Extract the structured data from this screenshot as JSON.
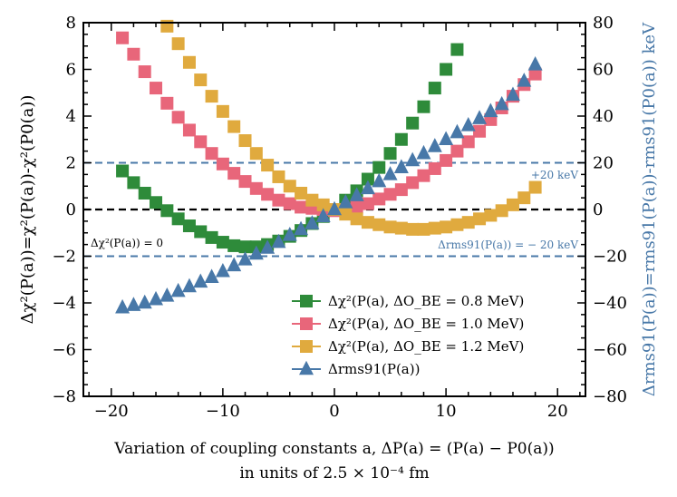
{
  "chart_data": {
    "type": "scatter",
    "xlabel_line1": "Variation of coupling constants a, ΔP(a) = (P(a) − P0(a))",
    "xlabel_line2": "in units of 2.5 × 10⁻⁴ fm",
    "ylabel_left": "Δχ²(P(a))=χ²(P(a))-χ²(P0(a))",
    "ylabel_right": "Δrms91(P(a))=rms91(P(a))-rms91(P0(a)) keV",
    "xlim": [
      -22.5,
      22.5
    ],
    "ylim_left": [
      -8,
      8
    ],
    "ylim_right": [
      -80,
      80
    ],
    "xticks": [
      "−20",
      "−10",
      "0",
      "10",
      "20"
    ],
    "xtick_values": [
      -20,
      -10,
      0,
      10,
      20
    ],
    "yticks_left": [
      "8",
      "6",
      "4",
      "2",
      "0",
      "−2",
      "−4",
      "−6",
      "−8"
    ],
    "ytick_left_values": [
      8,
      6,
      4,
      2,
      0,
      -2,
      -4,
      -6,
      -8
    ],
    "yticks_right": [
      "80",
      "60",
      "40",
      "20",
      "0",
      "−20",
      "−40",
      "−60",
      "−80"
    ],
    "ytick_right_values": [
      80,
      60,
      40,
      20,
      0,
      -20,
      -40,
      -60,
      -80
    ],
    "hlines": [
      {
        "y_right": 20,
        "style": "dashed",
        "color": "#4878a8"
      },
      {
        "y_right": -20,
        "style": "dashed",
        "color": "#4878a8"
      },
      {
        "y_left": 0,
        "style": "dashed",
        "color": "#000000"
      }
    ],
    "annotations": {
      "chi_zero": "Δχ²(P(a)) = 0",
      "plus20": "+20 keV",
      "minus20": "Δrms91(P(a)) = − 20 keV"
    },
    "series": [
      {
        "name": "Δχ²(P(a), ΔO_BE = 0.8 MeV)",
        "color": "#2e8b3a",
        "marker": "square",
        "axis": "left",
        "x": [
          -19,
          -18,
          -17,
          -16,
          -15,
          -14,
          -13,
          -12,
          -11,
          -10,
          -9,
          -8,
          -7,
          -6,
          -5,
          -4,
          -3,
          -2,
          -1,
          0,
          1,
          2,
          3,
          4,
          5,
          6,
          7,
          8,
          9,
          10,
          11
        ],
        "y": [
          1.65,
          1.15,
          0.7,
          0.3,
          -0.05,
          -0.4,
          -0.7,
          -0.95,
          -1.2,
          -1.4,
          -1.55,
          -1.6,
          -1.6,
          -1.5,
          -1.35,
          -1.15,
          -0.9,
          -0.6,
          -0.3,
          0.0,
          0.4,
          0.8,
          1.3,
          1.8,
          2.4,
          3.0,
          3.7,
          4.4,
          5.2,
          6.0,
          6.85
        ]
      },
      {
        "name": "Δχ²(P(a), ΔO_BE = 1.0 MeV)",
        "color": "#e8667a",
        "marker": "square",
        "axis": "left",
        "x": [
          -19,
          -18,
          -17,
          -16,
          -15,
          -14,
          -13,
          -12,
          -11,
          -10,
          -9,
          -8,
          -7,
          -6,
          -5,
          -4,
          -3,
          -2,
          -1,
          0,
          1,
          2,
          3,
          4,
          5,
          6,
          7,
          8,
          9,
          10,
          11,
          12,
          13,
          14,
          15,
          16,
          17,
          18
        ],
        "y": [
          7.35,
          6.65,
          5.9,
          5.2,
          4.55,
          3.95,
          3.4,
          2.9,
          2.4,
          1.95,
          1.55,
          1.2,
          0.9,
          0.65,
          0.4,
          0.25,
          0.1,
          0.05,
          0.0,
          -0.05,
          0.0,
          0.1,
          0.25,
          0.45,
          0.65,
          0.85,
          1.15,
          1.45,
          1.75,
          2.1,
          2.5,
          2.9,
          3.35,
          3.85,
          4.35,
          4.85,
          5.35,
          5.8
        ]
      },
      {
        "name": "Δχ²(P(a), ΔO_BE = 1.2 MeV)",
        "color": "#e0aa3e",
        "marker": "square",
        "axis": "left",
        "x": [
          -15,
          -14,
          -13,
          -12,
          -11,
          -10,
          -9,
          -8,
          -7,
          -6,
          -5,
          -4,
          -3,
          -2,
          -1,
          0,
          1,
          2,
          3,
          4,
          5,
          6,
          7,
          8,
          9,
          10,
          11,
          12,
          13,
          14,
          15,
          16,
          17,
          18
        ],
        "y": [
          7.85,
          7.1,
          6.3,
          5.55,
          4.85,
          4.2,
          3.55,
          2.95,
          2.4,
          1.9,
          1.4,
          1.0,
          0.7,
          0.4,
          0.2,
          0.0,
          -0.2,
          -0.4,
          -0.55,
          -0.65,
          -0.75,
          -0.8,
          -0.85,
          -0.85,
          -0.8,
          -0.75,
          -0.65,
          -0.55,
          -0.4,
          -0.25,
          -0.05,
          0.2,
          0.5,
          0.95
        ]
      },
      {
        "name": "Δrms91(P(a))",
        "color": "#4878a8",
        "marker": "triangle",
        "axis": "right",
        "x": [
          -19,
          -18,
          -17,
          -16,
          -15,
          -14,
          -13,
          -12,
          -11,
          -10,
          -9,
          -8,
          -7,
          -6,
          -5,
          -4,
          -3,
          -2,
          -1,
          0,
          1,
          2,
          3,
          4,
          5,
          6,
          7,
          8,
          9,
          10,
          11,
          12,
          13,
          14,
          15,
          16,
          17,
          18
        ],
        "y": [
          -42,
          -41,
          -40,
          -38.5,
          -37,
          -35,
          -33,
          -31,
          -29,
          -26.5,
          -24,
          -21.5,
          -19,
          -16.5,
          -14,
          -11,
          -8.5,
          -6,
          -3,
          0,
          3,
          6,
          9,
          12,
          15,
          18,
          21,
          24,
          27,
          30,
          33,
          36,
          39,
          42,
          45,
          49,
          55,
          62
        ]
      }
    ],
    "legend": [
      "Δχ²(P(a), ΔO_BE = 0.8 MeV)",
      "Δχ²(P(a), ΔO_BE = 1.0 MeV)",
      "Δχ²(P(a), ΔO_BE = 1.2 MeV)",
      "Δrms91(P(a))"
    ],
    "legend_location": "lower-right"
  }
}
